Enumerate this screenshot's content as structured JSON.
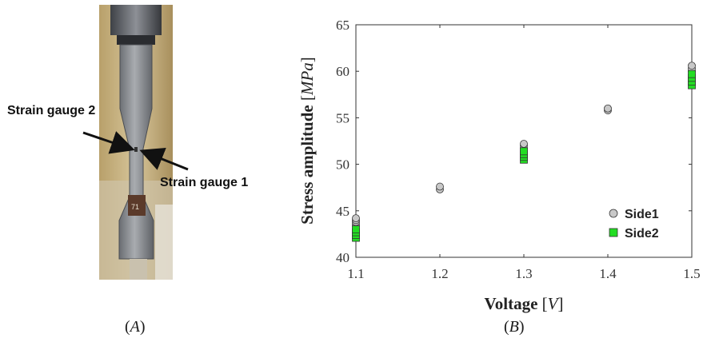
{
  "panel_a": {
    "caption_letter": "A",
    "label_gauge2": "Strain gauge 2",
    "label_gauge1": "Strain gauge 1",
    "specimen_tag": "71"
  },
  "panel_b": {
    "caption_letter": "B"
  },
  "colors": {
    "side1_fill": "#c8c8c8",
    "side2_fill": "#22dd22",
    "axis": "#333333"
  },
  "chart_data": {
    "type": "scatter",
    "xlabel_bold": "Voltage",
    "xlabel_unit": "V",
    "ylabel_bold": "Stress amplitude",
    "ylabel_unit": "MPa",
    "xlim": [
      1.1,
      1.5
    ],
    "ylim": [
      40,
      65
    ],
    "xticks": [
      "1.1",
      "1.2",
      "1.3",
      "1.4",
      "1.5"
    ],
    "yticks": [
      "40",
      "45",
      "50",
      "55",
      "60",
      "65"
    ],
    "grid": false,
    "legend_position": "bottom-right",
    "series": [
      {
        "name": "Side1",
        "marker": "circle",
        "points": [
          [
            1.1,
            43.4
          ],
          [
            1.1,
            43.6
          ],
          [
            1.1,
            43.8
          ],
          [
            1.1,
            44.0
          ],
          [
            1.1,
            44.2
          ],
          [
            1.2,
            47.3
          ],
          [
            1.2,
            47.6
          ],
          [
            1.3,
            51.7
          ],
          [
            1.3,
            52.0
          ],
          [
            1.3,
            52.2
          ],
          [
            1.4,
            55.8
          ],
          [
            1.4,
            56.0
          ],
          [
            1.5,
            60.0
          ],
          [
            1.5,
            60.3
          ],
          [
            1.5,
            60.6
          ]
        ]
      },
      {
        "name": "Side2",
        "marker": "square",
        "points": [
          [
            1.1,
            42.1
          ],
          [
            1.1,
            42.4
          ],
          [
            1.1,
            42.7
          ],
          [
            1.1,
            43.0
          ],
          [
            1.3,
            50.5
          ],
          [
            1.3,
            50.8
          ],
          [
            1.3,
            51.1
          ],
          [
            1.3,
            51.4
          ],
          [
            1.5,
            58.5
          ],
          [
            1.5,
            58.9
          ],
          [
            1.5,
            59.3
          ],
          [
            1.5,
            59.7
          ]
        ]
      }
    ]
  }
}
